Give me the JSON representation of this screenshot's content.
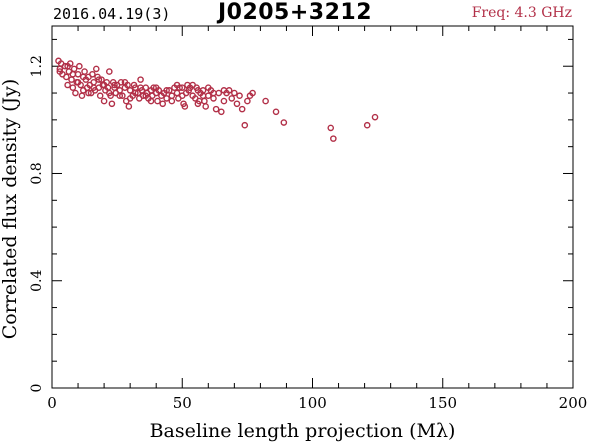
{
  "header": {
    "date": "2016.04.19(3)",
    "source": "J0205+3212",
    "freq": "Freq: 4.3 GHz"
  },
  "colors": {
    "points": "#b23048",
    "axes": "#000000",
    "freq_text": "#b23048"
  },
  "chart_data": {
    "type": "scatter",
    "xlabel": "Baseline length projection (Mλ)",
    "ylabel": "Correlated flux density (Jy)",
    "xlim": [
      0,
      200
    ],
    "ylim": [
      0,
      1.35
    ],
    "xticks": [
      0,
      50,
      100,
      150,
      200
    ],
    "yticks": [
      0,
      0.4,
      0.8,
      1.2
    ],
    "xtick_labels": [
      "0",
      "50",
      "100",
      "150",
      "200"
    ],
    "ytick_labels": [
      "0",
      "0.4",
      "0.8",
      "1.2"
    ],
    "grid": false,
    "marker": "open-circle",
    "series": [
      {
        "points": [
          [
            2.5,
            1.22
          ],
          [
            3.5,
            1.21
          ],
          [
            3.0,
            1.19
          ],
          [
            4.0,
            1.17
          ],
          [
            5.0,
            1.2
          ],
          [
            5.5,
            1.16
          ],
          [
            6.0,
            1.13
          ],
          [
            6.5,
            1.18
          ],
          [
            7.0,
            1.21
          ],
          [
            7.5,
            1.15
          ],
          [
            8.0,
            1.12
          ],
          [
            8.5,
            1.19
          ],
          [
            9.0,
            1.1
          ],
          [
            9.5,
            1.14
          ],
          [
            10.0,
            1.17
          ],
          [
            10.5,
            1.2
          ],
          [
            11.0,
            1.13
          ],
          [
            11.5,
            1.09
          ],
          [
            12.0,
            1.11
          ],
          [
            12.5,
            1.18
          ],
          [
            13.0,
            1.15
          ],
          [
            13.5,
            1.12
          ],
          [
            14.0,
            1.16
          ],
          [
            14.5,
            1.13
          ],
          [
            15.0,
            1.1
          ],
          [
            15.5,
            1.17
          ],
          [
            16.0,
            1.14
          ],
          [
            16.5,
            1.11
          ],
          [
            17.0,
            1.19
          ],
          [
            17.5,
            1.16
          ],
          [
            18.0,
            1.12
          ],
          [
            18.5,
            1.09
          ],
          [
            19.0,
            1.15
          ],
          [
            19.5,
            1.13
          ],
          [
            20.0,
            1.07
          ],
          [
            20.5,
            1.11
          ],
          [
            21.0,
            1.14
          ],
          [
            21.5,
            1.12
          ],
          [
            22.0,
            1.18
          ],
          [
            22.5,
            1.09
          ],
          [
            23.0,
            1.06
          ],
          [
            23.5,
            1.14
          ],
          [
            24.0,
            1.12
          ],
          [
            24.5,
            1.1
          ],
          [
            25.0,
            1.13
          ],
          [
            26.0,
            1.11
          ],
          [
            26.5,
            1.14
          ],
          [
            27.0,
            1.09
          ],
          [
            28.0,
            1.12
          ],
          [
            28.5,
            1.07
          ],
          [
            29.0,
            1.13
          ],
          [
            29.5,
            1.05
          ],
          [
            30.0,
            1.11
          ],
          [
            31.0,
            1.09
          ],
          [
            31.5,
            1.13
          ],
          [
            32.0,
            1.12
          ],
          [
            33.0,
            1.1
          ],
          [
            33.5,
            1.08
          ],
          [
            34.0,
            1.15
          ],
          [
            34.5,
            1.11
          ],
          [
            35.0,
            1.09
          ],
          [
            36.0,
            1.12
          ],
          [
            36.5,
            1.1
          ],
          [
            37.0,
            1.08
          ],
          [
            38.0,
            1.11
          ],
          [
            38.5,
            1.09
          ],
          [
            39.0,
            1.12
          ],
          [
            40.0,
            1.1
          ],
          [
            40.5,
            1.07
          ],
          [
            41.0,
            1.11
          ],
          [
            42.0,
            1.09
          ],
          [
            42.5,
            1.06
          ],
          [
            43.0,
            1.1
          ],
          [
            44.0,
            1.08
          ],
          [
            45.0,
            1.11
          ],
          [
            46.0,
            1.09
          ],
          [
            47.0,
            1.12
          ],
          [
            48.0,
            1.1
          ],
          [
            48.5,
            1.08
          ],
          [
            49.0,
            1.12
          ],
          [
            50.0,
            1.09
          ],
          [
            50.5,
            1.06
          ],
          [
            51.0,
            1.05
          ],
          [
            51.5,
            1.1
          ],
          [
            52.0,
            1.13
          ],
          [
            52.5,
            1.11
          ],
          [
            53.0,
            1.12
          ],
          [
            54.0,
            1.09
          ],
          [
            55.0,
            1.08
          ],
          [
            55.5,
            1.12
          ],
          [
            56.0,
            1.06
          ],
          [
            56.5,
            1.07
          ],
          [
            57.0,
            1.1
          ],
          [
            58.0,
            1.11
          ],
          [
            58.5,
            1.07
          ],
          [
            59.0,
            1.05
          ],
          [
            60.0,
            1.09
          ],
          [
            61.0,
            1.11
          ],
          [
            62.0,
            1.08
          ],
          [
            63.0,
            1.04
          ],
          [
            64.0,
            1.1
          ],
          [
            65.0,
            1.03
          ],
          [
            66.0,
            1.07
          ],
          [
            67.0,
            1.1
          ],
          [
            68.0,
            1.11
          ],
          [
            69.0,
            1.08
          ],
          [
            70.0,
            1.1
          ],
          [
            71.0,
            1.06
          ],
          [
            72.0,
            1.09
          ],
          [
            73.0,
            1.04
          ],
          [
            74.0,
            0.98
          ],
          [
            75.0,
            1.07
          ],
          [
            76.0,
            1.09
          ],
          [
            77.0,
            1.1
          ],
          [
            82.0,
            1.07
          ],
          [
            86.0,
            1.03
          ],
          [
            89.0,
            0.99
          ],
          [
            107.0,
            0.97
          ],
          [
            108.0,
            0.93
          ],
          [
            121.0,
            0.98
          ],
          [
            124.0,
            1.01
          ],
          [
            3.0,
            1.18
          ],
          [
            6.0,
            1.2
          ],
          [
            8.0,
            1.17
          ],
          [
            10.0,
            1.14
          ],
          [
            12.0,
            1.16
          ],
          [
            14.0,
            1.1
          ],
          [
            16.0,
            1.12
          ],
          [
            18.0,
            1.15
          ],
          [
            20.0,
            1.13
          ],
          [
            22.0,
            1.1
          ],
          [
            24.0,
            1.13
          ],
          [
            26.0,
            1.09
          ],
          [
            28.0,
            1.14
          ],
          [
            30.0,
            1.08
          ],
          [
            32.0,
            1.1
          ],
          [
            34.0,
            1.12
          ],
          [
            36.0,
            1.09
          ],
          [
            38.0,
            1.07
          ],
          [
            40.0,
            1.12
          ],
          [
            44.0,
            1.11
          ],
          [
            46.0,
            1.07
          ],
          [
            48.0,
            1.13
          ],
          [
            50.0,
            1.12
          ],
          [
            54.0,
            1.13
          ],
          [
            56.0,
            1.11
          ],
          [
            58.0,
            1.09
          ],
          [
            60.0,
            1.12
          ],
          [
            62.0,
            1.1
          ],
          [
            66.0,
            1.11
          ]
        ]
      }
    ]
  }
}
